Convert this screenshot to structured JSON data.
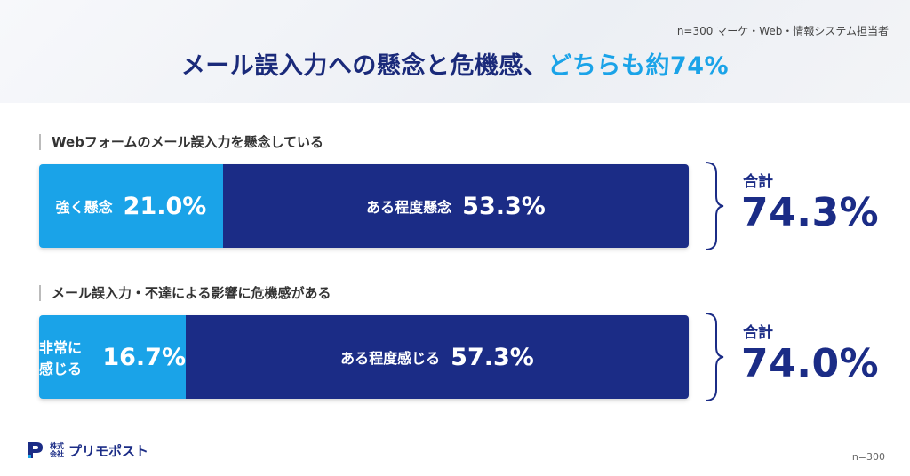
{
  "header": {
    "note": "n=300 マーケ・Web・情報システム担当者",
    "title_main": "メール誤入力への懸念と危機感、",
    "title_highlight": "どちらも約74%"
  },
  "chart_data": [
    {
      "type": "bar",
      "orientation": "horizontal-stacked",
      "title": "Webフォームのメール誤入力を懸念している",
      "series": [
        {
          "name": "強く懸念",
          "value": 21.0,
          "value_label": "21.0%",
          "color": "#1aa3e8"
        },
        {
          "name": "ある程度懸念",
          "value": 53.3,
          "value_label": "53.3%",
          "color": "#1b2c86"
        }
      ],
      "total_label": "合計",
      "total_value": "74.3%"
    },
    {
      "type": "bar",
      "orientation": "horizontal-stacked",
      "title": "メール誤入力・不達による影響に危機感がある",
      "series": [
        {
          "name": "非常に感じる",
          "value": 16.7,
          "value_label": "16.7%",
          "color": "#1aa3e8"
        },
        {
          "name": "ある程度感じる",
          "value": 57.3,
          "value_label": "57.3%",
          "color": "#1b2c86"
        }
      ],
      "total_label": "合計",
      "total_value": "74.0%"
    }
  ],
  "footer": {
    "logo_small": "株式会社",
    "logo_text": "プリモポスト",
    "note": "n=300"
  }
}
